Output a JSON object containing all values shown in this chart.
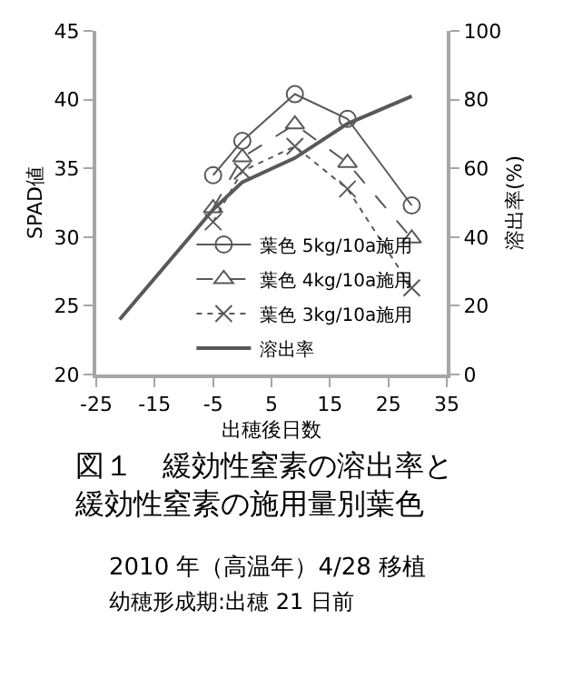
{
  "chart_data": {
    "type": "line",
    "title": "図１　緩効性窒素の溶出率と緩効性窒素の施用量別葉色",
    "xlabel": "出穂後日数",
    "ylabel": "SPAD値",
    "y2label": "溶出率(%)",
    "x": [
      -5,
      0,
      9,
      18,
      29
    ],
    "series": [
      {
        "name": "葉色 5kg/10a施用",
        "color": "#595959",
        "marker": "circle",
        "line_style": "solid",
        "values": [
          34.5,
          37,
          40.4,
          38.6,
          32.3
        ]
      },
      {
        "name": "葉色 4kg/10a施用",
        "color": "#595959",
        "marker": "triangle",
        "line_style": "dashed",
        "values": [
          32.1,
          35.8,
          38.2,
          35.4,
          29.9
        ]
      },
      {
        "name": "葉色 3kg/10a施用",
        "color": "#595959",
        "marker": "cross",
        "line_style": "dotted",
        "values": [
          31.1,
          34.8,
          36.6,
          33.5,
          26.3
        ]
      },
      {
        "name": "溶出率",
        "color": "#595959",
        "marker": "none",
        "line_style": "solid",
        "axis": "y2",
        "x": [
          -21,
          -5,
          0,
          9,
          18,
          29
        ],
        "values": [
          16,
          48,
          56,
          63,
          73,
          81
        ]
      }
    ],
    "xlim": [
      -25,
      35
    ],
    "xticks": [
      -25,
      -15,
      -5,
      5,
      15,
      25,
      35
    ],
    "ylim": [
      20,
      45
    ],
    "yticks": [
      20,
      25,
      30,
      35,
      40,
      45
    ],
    "y2lim": [
      0,
      100
    ],
    "y2ticks": [
      0,
      20,
      40,
      60,
      80,
      100
    ],
    "legend": "bottom",
    "annotations": [
      "2010 年（高温年）4/28 移植",
      "幼穂形成期:出穂 21 日前"
    ]
  }
}
